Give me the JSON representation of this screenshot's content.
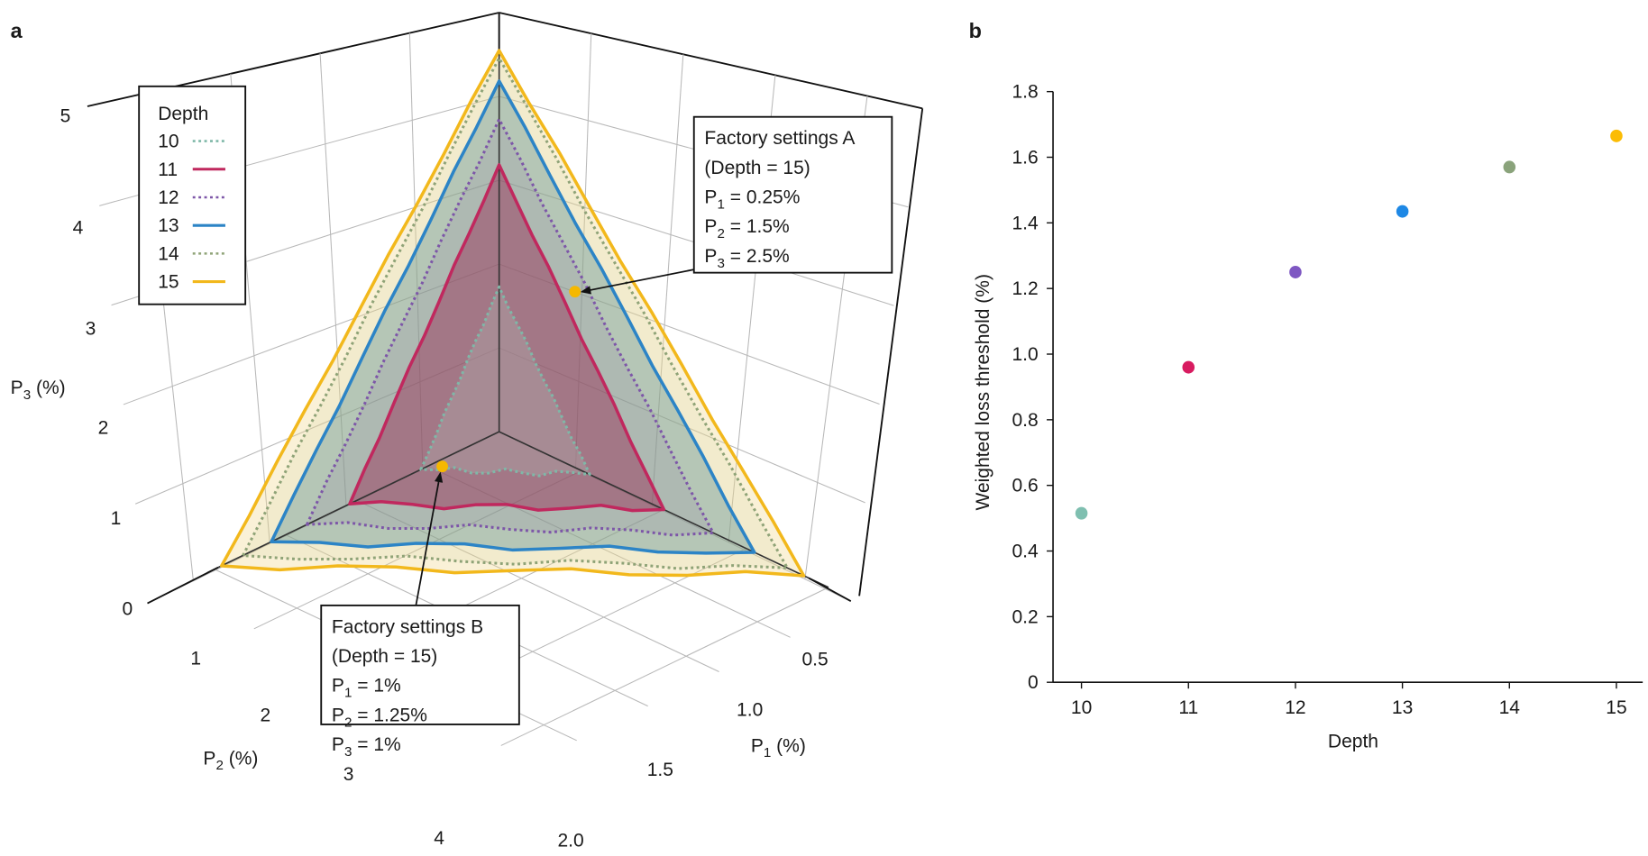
{
  "figure": {
    "panel_a_label": "a",
    "panel_b_label": "b"
  },
  "chart_data": [
    {
      "type": "area",
      "panel": "a",
      "title": "",
      "description": "3D ternary-style cone plot of feasible parameter region per circuit depth",
      "axes": {
        "p1": {
          "label_main": "P",
          "label_sub": "1",
          "label_tail": " (%)",
          "ticks": [
            "0",
            "0.5",
            "1.0",
            "1.5",
            "2.0"
          ],
          "range": [
            0,
            2.0
          ]
        },
        "p2": {
          "label_main": "P",
          "label_sub": "2",
          "label_tail": " (%)",
          "ticks": [
            "0",
            "1",
            "2",
            "3",
            "4"
          ],
          "range": [
            0,
            4
          ]
        },
        "p3": {
          "label_main": "P",
          "label_sub": "3",
          "label_tail": " (%)",
          "ticks": [
            "0",
            "1",
            "2",
            "3",
            "4",
            "5"
          ],
          "range": [
            0,
            5
          ]
        }
      },
      "legend": {
        "title": "Depth",
        "placement": "top-left",
        "entries": [
          {
            "label": "10",
            "color": "#7fb8a8",
            "style": "dotted"
          },
          {
            "label": "11",
            "color": "#c0285e",
            "style": "solid"
          },
          {
            "label": "12",
            "color": "#7d56a8",
            "style": "dotted"
          },
          {
            "label": "13",
            "color": "#2c84c6",
            "style": "solid"
          },
          {
            "label": "14",
            "color": "#8fa377",
            "style": "dotted"
          },
          {
            "label": "15",
            "color": "#f2b81c",
            "style": "solid"
          }
        ]
      },
      "series": [
        {
          "name": "10",
          "p3_max": 1.9,
          "p1_max": 0.55,
          "p2_max": 1.1
        },
        {
          "name": "11",
          "p3_max": 3.5,
          "p1_max": 1.0,
          "p2_max": 2.1
        },
        {
          "name": "12",
          "p3_max": 4.1,
          "p1_max": 1.3,
          "p2_max": 2.7
        },
        {
          "name": "13",
          "p3_max": 4.6,
          "p1_max": 1.55,
          "p2_max": 3.2
        },
        {
          "name": "14",
          "p3_max": 4.9,
          "p1_max": 1.75,
          "p2_max": 3.6
        },
        {
          "name": "15",
          "p3_max": 5.0,
          "p1_max": 1.85,
          "p2_max": 3.9
        }
      ],
      "annotations": [
        {
          "id": "A",
          "lines": [
            "Factory settings A",
            "(Depth = 15)"
          ],
          "params": [
            {
              "main": "P",
              "sub": "1",
              "text": " = 0.25%"
            },
            {
              "main": "P",
              "sub": "2",
              "text": " = 1.5%"
            },
            {
              "main": "P",
              "sub": "3",
              "text": " = 2.5%"
            }
          ],
          "point": {
            "p1": 0.25,
            "p2": 1.5,
            "p3": 2.5
          },
          "marker_color": "#f5b800"
        },
        {
          "id": "B",
          "lines": [
            "Factory settings B",
            "(Depth = 15)"
          ],
          "params": [
            {
              "main": "P",
              "sub": "1",
              "text": " = 1%"
            },
            {
              "main": "P",
              "sub": "2",
              "text": " = 1.25%"
            },
            {
              "main": "P",
              "sub": "3",
              "text": " = 1%"
            }
          ],
          "point": {
            "p1": 1.0,
            "p2": 1.25,
            "p3": 1.0
          },
          "marker_color": "#f5b800"
        }
      ]
    },
    {
      "type": "scatter",
      "panel": "b",
      "title": "",
      "xlabel": "Depth",
      "ylabel": "Weighted loss threshold (%)",
      "xlim": [
        9.75,
        15.25
      ],
      "ylim": [
        0,
        1.8
      ],
      "x_ticks": [
        "10",
        "11",
        "12",
        "13",
        "14",
        "15"
      ],
      "y_ticks": [
        "0",
        "0.2",
        "0.4",
        "0.6",
        "0.8",
        "1.0",
        "1.2",
        "1.4",
        "1.6",
        "1.8"
      ],
      "grid": false,
      "points": [
        {
          "x": 10,
          "y": 0.515,
          "color": "#7fbfb0"
        },
        {
          "x": 11,
          "y": 0.96,
          "color": "#d81b60"
        },
        {
          "x": 12,
          "y": 1.25,
          "color": "#7e57c2"
        },
        {
          "x": 13,
          "y": 1.435,
          "color": "#1e88e5"
        },
        {
          "x": 14,
          "y": 1.57,
          "color": "#8aa37b"
        },
        {
          "x": 15,
          "y": 1.665,
          "color": "#fbbc05"
        }
      ]
    }
  ]
}
